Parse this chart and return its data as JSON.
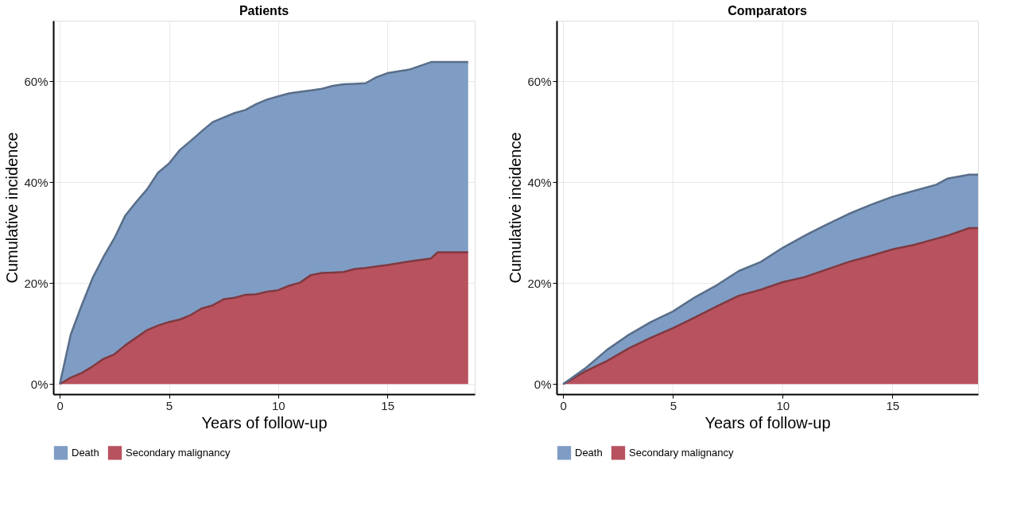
{
  "chart_data": [
    {
      "type": "area",
      "stacked": true,
      "title": "Patients",
      "xlabel": "Years of follow-up",
      "ylabel": "Cumulative incidence",
      "x": [
        0,
        0.5,
        1,
        1.5,
        2,
        2.5,
        3,
        3.5,
        4,
        4.5,
        5,
        5.5,
        6,
        6.5,
        7,
        7.5,
        8,
        8.5,
        9,
        9.5,
        10,
        10.5,
        11,
        11.5,
        12,
        12.5,
        13,
        13.5,
        14,
        14.5,
        15,
        16,
        17,
        17.3,
        18.7
      ],
      "series": [
        {
          "name": "Secondary malignancy",
          "color": "#b8525e",
          "values": [
            0,
            1.3,
            2.2,
            3.5,
            5,
            5.9,
            7.7,
            9.2,
            10.7,
            11.6,
            12.3,
            12.8,
            13.7,
            15,
            15.6,
            16.8,
            17.1,
            17.7,
            17.8,
            18.3,
            18.6,
            19.5,
            20.1,
            21.6,
            22,
            22.1,
            22.2,
            22.8,
            23,
            23.3,
            23.6,
            24.3,
            24.9,
            26.1,
            26.1
          ]
        },
        {
          "name": "Death",
          "color": "#7f9dc4",
          "values": [
            0,
            8.5,
            13.4,
            17.5,
            20.2,
            23,
            25.7,
            26.9,
            27.9,
            30.3,
            31.4,
            33.6,
            34.5,
            35.1,
            36.3,
            36,
            36.6,
            36.6,
            37.7,
            38.1,
            38.4,
            38.1,
            37.8,
            36.6,
            36.5,
            37,
            37.2,
            36.7,
            36.6,
            37.5,
            38,
            38,
            38.9,
            37.7,
            37.7
          ]
        }
      ],
      "xlim": [
        -0.3,
        19
      ],
      "xticks": [
        0,
        5,
        10,
        15
      ],
      "ylim": [
        -2,
        72
      ],
      "yticks": [
        {
          "value": 0,
          "label": "0%"
        },
        {
          "value": 20,
          "label": "20%"
        },
        {
          "value": 40,
          "label": "40%"
        },
        {
          "value": 60,
          "label": "60%"
        }
      ],
      "grid": true,
      "legend": "bottom"
    },
    {
      "type": "area",
      "stacked": true,
      "title": "Comparators",
      "xlabel": "Years of follow-up",
      "ylabel": "Cumulative incidence",
      "x": [
        0,
        1,
        2,
        3,
        4,
        5,
        6,
        7,
        8,
        9,
        10,
        11,
        12,
        13,
        14,
        15,
        16,
        17,
        17.5,
        18.5,
        18.9
      ],
      "series": [
        {
          "name": "Secondary malignancy",
          "color": "#b8525e",
          "values": [
            0,
            2.5,
            4.6,
            7.1,
            9.2,
            11.1,
            13.2,
            15.4,
            17.5,
            18.7,
            20.2,
            21.2,
            22.7,
            24.2,
            25.4,
            26.7,
            27.6,
            28.8,
            29.4,
            30.9,
            30.9
          ]
        },
        {
          "name": "Death",
          "color": "#7f9dc4",
          "values": [
            0,
            0.6,
            2.2,
            2.7,
            3.1,
            3.3,
            4,
            4.2,
            4.9,
            5.5,
            6.8,
            8.2,
            8.9,
            9.5,
            10.1,
            10.4,
            10.7,
            10.7,
            11.3,
            10.6,
            10.6
          ]
        }
      ],
      "xlim": [
        -0.3,
        18.9
      ],
      "xticks": [
        0,
        5,
        10,
        15
      ],
      "ylim": [
        -2,
        72
      ],
      "yticks": [
        {
          "value": 0,
          "label": "0%"
        },
        {
          "value": 20,
          "label": "20%"
        },
        {
          "value": 40,
          "label": "40%"
        },
        {
          "value": 60,
          "label": "60%"
        }
      ],
      "grid": true,
      "legend": "bottom"
    }
  ]
}
